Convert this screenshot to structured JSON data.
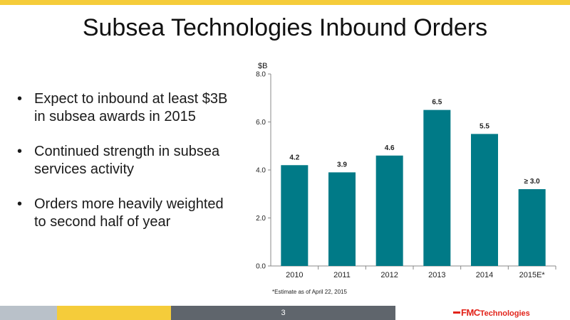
{
  "title": "Subsea Technologies Inbound Orders",
  "bullets": [
    "Expect to inbound at least $3B in subsea awards in 2015",
    "Continued strength in subsea services activity",
    "Orders more heavily weighted to second half of year"
  ],
  "bullet_symbol": "•",
  "footnote": "*Estimate as of April 22, 2015",
  "page_number": "3",
  "logo": {
    "brand": "FMC",
    "suffix": "Technologies"
  },
  "colors": {
    "bar": "#007a87",
    "accent_yellow": "#f5cc3a",
    "logo_red": "#e2231a",
    "footer_gray": "#5f656c"
  },
  "chart_data": {
    "type": "bar",
    "categories": [
      "2010",
      "2011",
      "2012",
      "2013",
      "2014",
      "2015E*"
    ],
    "values": [
      4.2,
      3.9,
      4.6,
      6.5,
      5.5,
      3.2
    ],
    "data_labels": [
      "4.2",
      "3.9",
      "4.6",
      "6.5",
      "5.5",
      "≥ 3.0"
    ],
    "ylabel": "$B",
    "ylim": [
      0,
      8
    ],
    "yticks": [
      "0.0",
      "2.0",
      "4.0",
      "6.0",
      "8.0"
    ],
    "ytick_values": [
      0,
      2,
      4,
      6,
      8
    ],
    "grid": false,
    "legend": "none"
  }
}
